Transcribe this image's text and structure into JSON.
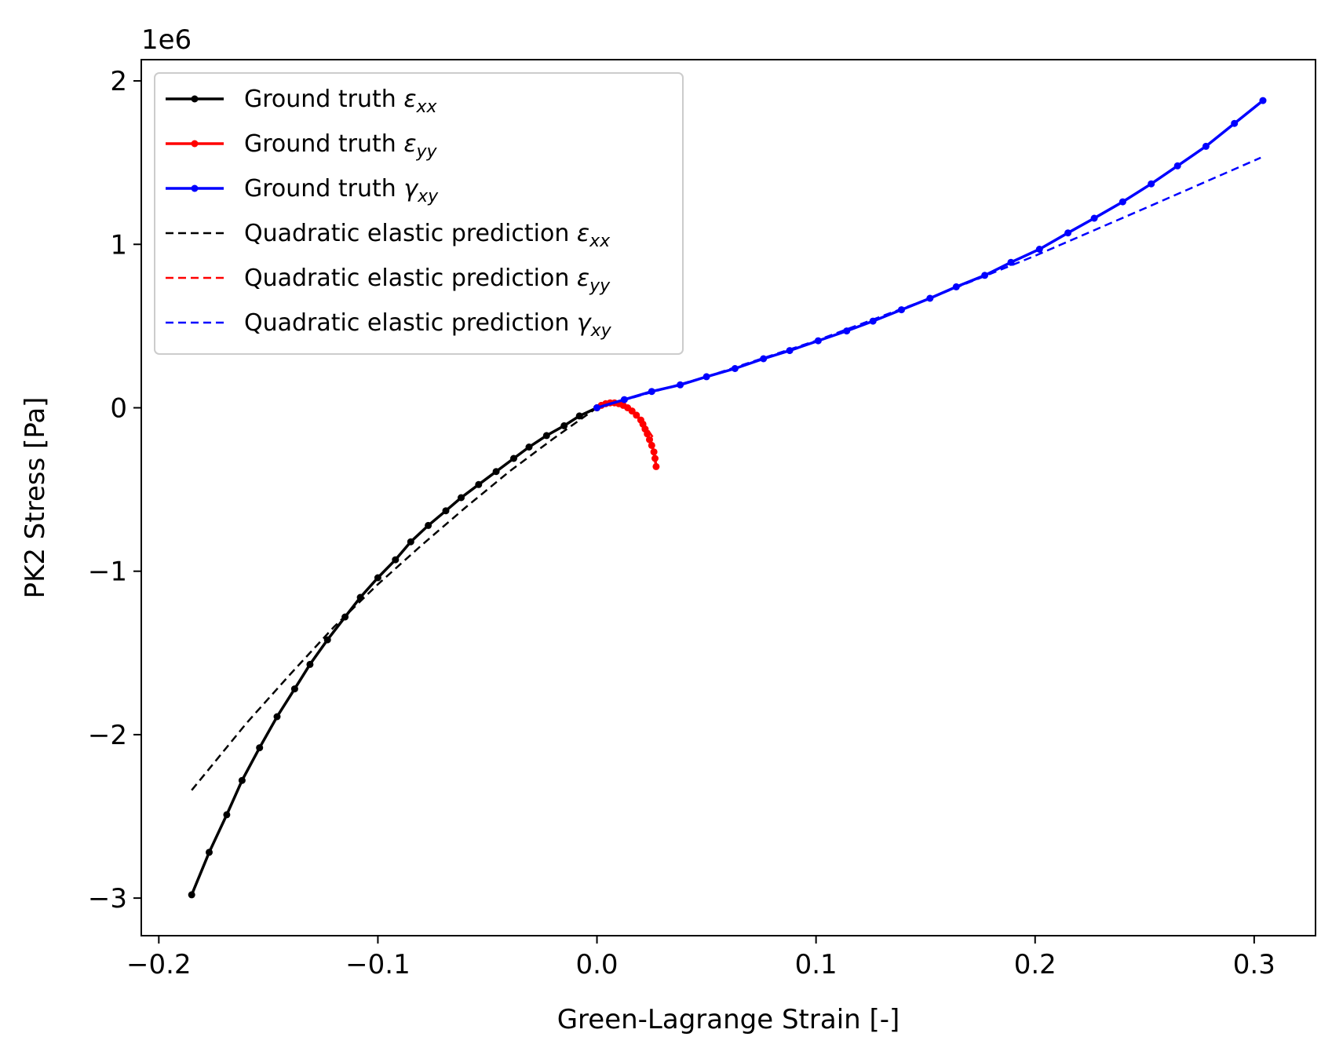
{
  "chart_data": {
    "type": "line",
    "xlabel": "Green-Lagrange Strain [-]",
    "ylabel": "PK2 Stress [Pa]",
    "y_offset_label": "1e6",
    "xlim": [
      -0.208,
      0.328
    ],
    "ylim": [
      -3.23,
      2.13
    ],
    "xticks": [
      -0.2,
      -0.1,
      0.0,
      0.1,
      0.2,
      0.3
    ],
    "xtick_labels": [
      "−0.2",
      "−0.1",
      "0.0",
      "0.1",
      "0.2",
      "0.3"
    ],
    "yticks": [
      -3,
      -2,
      -1,
      0,
      1,
      2
    ],
    "ytick_labels": [
      "−3",
      "−2",
      "−1",
      "0",
      "1",
      "2"
    ],
    "grid": false,
    "legend_position": "upper-left",
    "series": [
      {
        "name": "Ground truth εxx",
        "label_main": "Ground truth ",
        "symbol": "ε",
        "subscript": "xx",
        "color": "#000000",
        "style": "solid-marker",
        "x": [
          -0.185,
          -0.177,
          -0.169,
          -0.162,
          -0.154,
          -0.146,
          -0.138,
          -0.131,
          -0.123,
          -0.115,
          -0.108,
          -0.1,
          -0.092,
          -0.085,
          -0.077,
          -0.069,
          -0.062,
          -0.054,
          -0.046,
          -0.038,
          -0.031,
          -0.023,
          -0.015,
          -0.008,
          0.0
        ],
        "y": [
          -2.98,
          -2.72,
          -2.49,
          -2.28,
          -2.08,
          -1.89,
          -1.72,
          -1.57,
          -1.42,
          -1.28,
          -1.16,
          -1.04,
          -0.93,
          -0.82,
          -0.72,
          -0.63,
          -0.55,
          -0.47,
          -0.39,
          -0.31,
          -0.24,
          -0.17,
          -0.11,
          -0.05,
          0.0
        ]
      },
      {
        "name": "Ground truth εyy",
        "label_main": "Ground truth ",
        "symbol": "ε",
        "subscript": "yy",
        "color": "#ff0000",
        "style": "solid-marker",
        "x": [
          0.0,
          0.002,
          0.004,
          0.006,
          0.008,
          0.01,
          0.012,
          0.014,
          0.016,
          0.018,
          0.02,
          0.021,
          0.022,
          0.023,
          0.024,
          0.025,
          0.026,
          0.0265,
          0.027
        ],
        "y": [
          0.0,
          0.015,
          0.025,
          0.03,
          0.03,
          0.025,
          0.015,
          0.0,
          -0.02,
          -0.045,
          -0.075,
          -0.1,
          -0.13,
          -0.16,
          -0.195,
          -0.23,
          -0.27,
          -0.31,
          -0.36
        ]
      },
      {
        "name": "Ground truth γxy",
        "label_main": "Ground truth ",
        "symbol": "γ",
        "subscript": "xy",
        "color": "#0000ff",
        "style": "solid-marker",
        "x": [
          0.0,
          0.0125,
          0.025,
          0.038,
          0.05,
          0.063,
          0.076,
          0.088,
          0.101,
          0.114,
          0.126,
          0.139,
          0.152,
          0.164,
          0.177,
          0.189,
          0.202,
          0.215,
          0.227,
          0.24,
          0.253,
          0.265,
          0.278,
          0.291,
          0.304
        ],
        "y": [
          0.0,
          0.05,
          0.1,
          0.14,
          0.19,
          0.24,
          0.3,
          0.35,
          0.41,
          0.47,
          0.53,
          0.6,
          0.67,
          0.74,
          0.81,
          0.89,
          0.97,
          1.07,
          1.16,
          1.26,
          1.37,
          1.48,
          1.6,
          1.74,
          1.88
        ]
      },
      {
        "name": "Quadratic elastic prediction εxx",
        "label_main": "Quadratic elastic prediction ",
        "symbol": "ε",
        "subscript": "xx",
        "color": "#000000",
        "style": "dashed",
        "x": [
          -0.185,
          -0.16,
          -0.14,
          -0.12,
          -0.1,
          -0.08,
          -0.06,
          -0.04,
          -0.02,
          0.0
        ],
        "y": [
          -2.34,
          -1.93,
          -1.63,
          -1.34,
          -1.08,
          -0.84,
          -0.61,
          -0.39,
          -0.19,
          0.0
        ]
      },
      {
        "name": "Quadratic elastic prediction εyy",
        "label_main": "Quadratic elastic prediction ",
        "symbol": "ε",
        "subscript": "yy",
        "color": "#ff0000",
        "style": "dashed",
        "x": [
          0.0,
          0.004,
          0.008,
          0.012,
          0.016,
          0.02,
          0.023,
          0.026
        ],
        "y": [
          0.0,
          0.02,
          0.025,
          0.01,
          -0.02,
          -0.07,
          -0.13,
          -0.19
        ]
      },
      {
        "name": "Quadratic elastic prediction γxy",
        "label_main": "Quadratic elastic prediction ",
        "symbol": "γ",
        "subscript": "xy",
        "color": "#0000ff",
        "style": "dashed",
        "x": [
          0.0,
          0.05,
          0.1,
          0.15,
          0.2,
          0.25,
          0.303
        ],
        "y": [
          0.0,
          0.19,
          0.41,
          0.66,
          0.93,
          1.22,
          1.53
        ]
      }
    ]
  }
}
